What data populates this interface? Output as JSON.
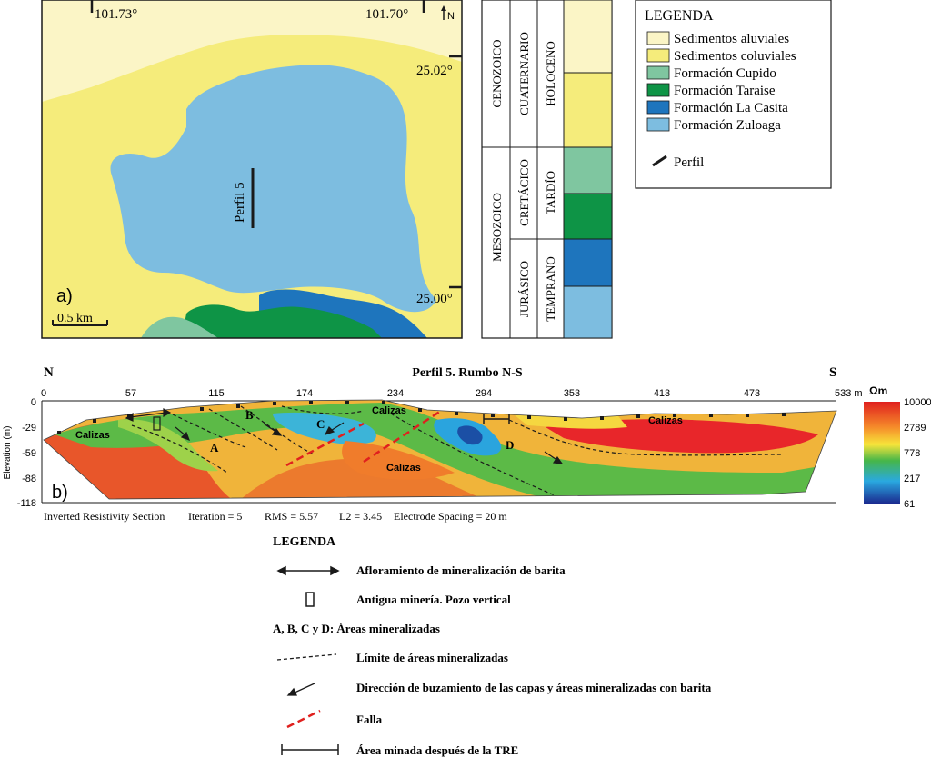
{
  "map_a": {
    "panel_label": "a)",
    "lon_left": "101.73°",
    "lon_right": "101.70°",
    "lat_top": "25.02°",
    "lat_bottom": "25.00°",
    "north_label": "N",
    "profile_label": "Perfil 5",
    "scale_label": "0.5 km",
    "colors": {
      "aluviales": "#fbf5c6",
      "coluviales": "#f5ec7b",
      "cupido": "#7fc6a0",
      "taraise": "#0e9446",
      "lacasita": "#1e75bd",
      "zuloaga": "#7dbde0"
    }
  },
  "stratigraphy": {
    "eras": [
      "CENOZOICO",
      "MESOZOICO"
    ],
    "periods": [
      "CUATERNARIO",
      "CRETÁCICO",
      "JURÁSICO"
    ],
    "epochs": [
      "HOLOCENO",
      "TARDÍO",
      "TEMPRANO"
    ]
  },
  "legend_a": {
    "title": "LEGENDA",
    "items": [
      {
        "label": "Sedimentos aluviales",
        "color": "#fbf5c6"
      },
      {
        "label": "Sedimentos coluviales",
        "color": "#f5ec7b"
      },
      {
        "label": "Formación Cupido",
        "color": "#7fc6a0"
      },
      {
        "label": "Formación Taraise",
        "color": "#0e9446"
      },
      {
        "label": "Formación La Casita",
        "color": "#1e75bd"
      },
      {
        "label": "Formación Zuloaga",
        "color": "#7dbde0"
      }
    ],
    "profile_item": "Perfil"
  },
  "section_b": {
    "panel_label": "b)",
    "north": "N",
    "south": "S",
    "title": "Perfil 5. Rumbo N-S",
    "x_ticks": [
      "0",
      "57",
      "115",
      "174",
      "234",
      "294",
      "353",
      "413",
      "473",
      "533 m"
    ],
    "y_ticks": [
      "0",
      "-29",
      "-59",
      "-88",
      "-118"
    ],
    "y_axis_label": "Elevation (m)",
    "area_labels": [
      "A",
      "B",
      "C",
      "D"
    ],
    "calizas_label": "Calizas",
    "colorbar_unit": "Ωm",
    "colorbar_ticks": [
      "10000",
      "2789",
      "778",
      "217",
      "61"
    ],
    "footer": {
      "method": "Inverted Resistivity Section",
      "iteration": "Iteration = 5",
      "rms": "RMS = 5.57",
      "l2": "L2 = 3.45",
      "spacing": "Electrode Spacing = 20 m"
    }
  },
  "legend_b": {
    "title": "LEGENDA",
    "items": [
      "Afloramiento de mineralización  de barita",
      "Antigua minería. Pozo vertical",
      "A, B, C y D: Áreas mineralizadas",
      "Límite de áreas mineralizadas",
      "Dirección de buzamiento de las capas y áreas mineralizadas con barita",
      "Falla",
      "Área minada después de la TRE"
    ]
  }
}
